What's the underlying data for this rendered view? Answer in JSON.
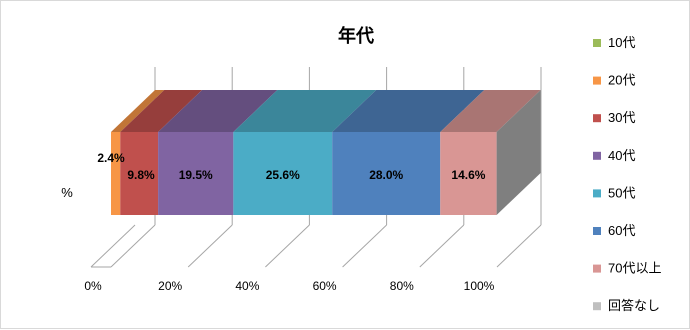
{
  "chart_data": {
    "type": "bar",
    "orientation": "horizontal",
    "stacked": "percent",
    "style_3d": true,
    "title": "年代",
    "ylabel": "%",
    "categories": [
      "%"
    ],
    "xlim": [
      0,
      100
    ],
    "x_ticks": [
      "0%",
      "20%",
      "40%",
      "60%",
      "80%",
      "100%"
    ],
    "gridlines": true,
    "legend_position": "right",
    "series": [
      {
        "name": "10代",
        "value": 0.0,
        "label": "",
        "color": "#9BBB59"
      },
      {
        "name": "20代",
        "value": 2.4,
        "label": "2.4%",
        "color": "#F79646"
      },
      {
        "name": "30代",
        "value": 9.8,
        "label": "9.8%",
        "color": "#C0504D"
      },
      {
        "name": "40代",
        "value": 19.5,
        "label": "19.5%",
        "color": "#8064A2"
      },
      {
        "name": "50代",
        "value": 25.6,
        "label": "25.6%",
        "color": "#4BACC6"
      },
      {
        "name": "60代",
        "value": 28.0,
        "label": "28.0%",
        "color": "#4F81BD"
      },
      {
        "name": "70代以上",
        "value": 14.6,
        "label": "14.6%",
        "color": "#D99694"
      },
      {
        "name": "回答なし",
        "value": 0.0,
        "label": "",
        "color": "#BFBFBF"
      }
    ]
  }
}
